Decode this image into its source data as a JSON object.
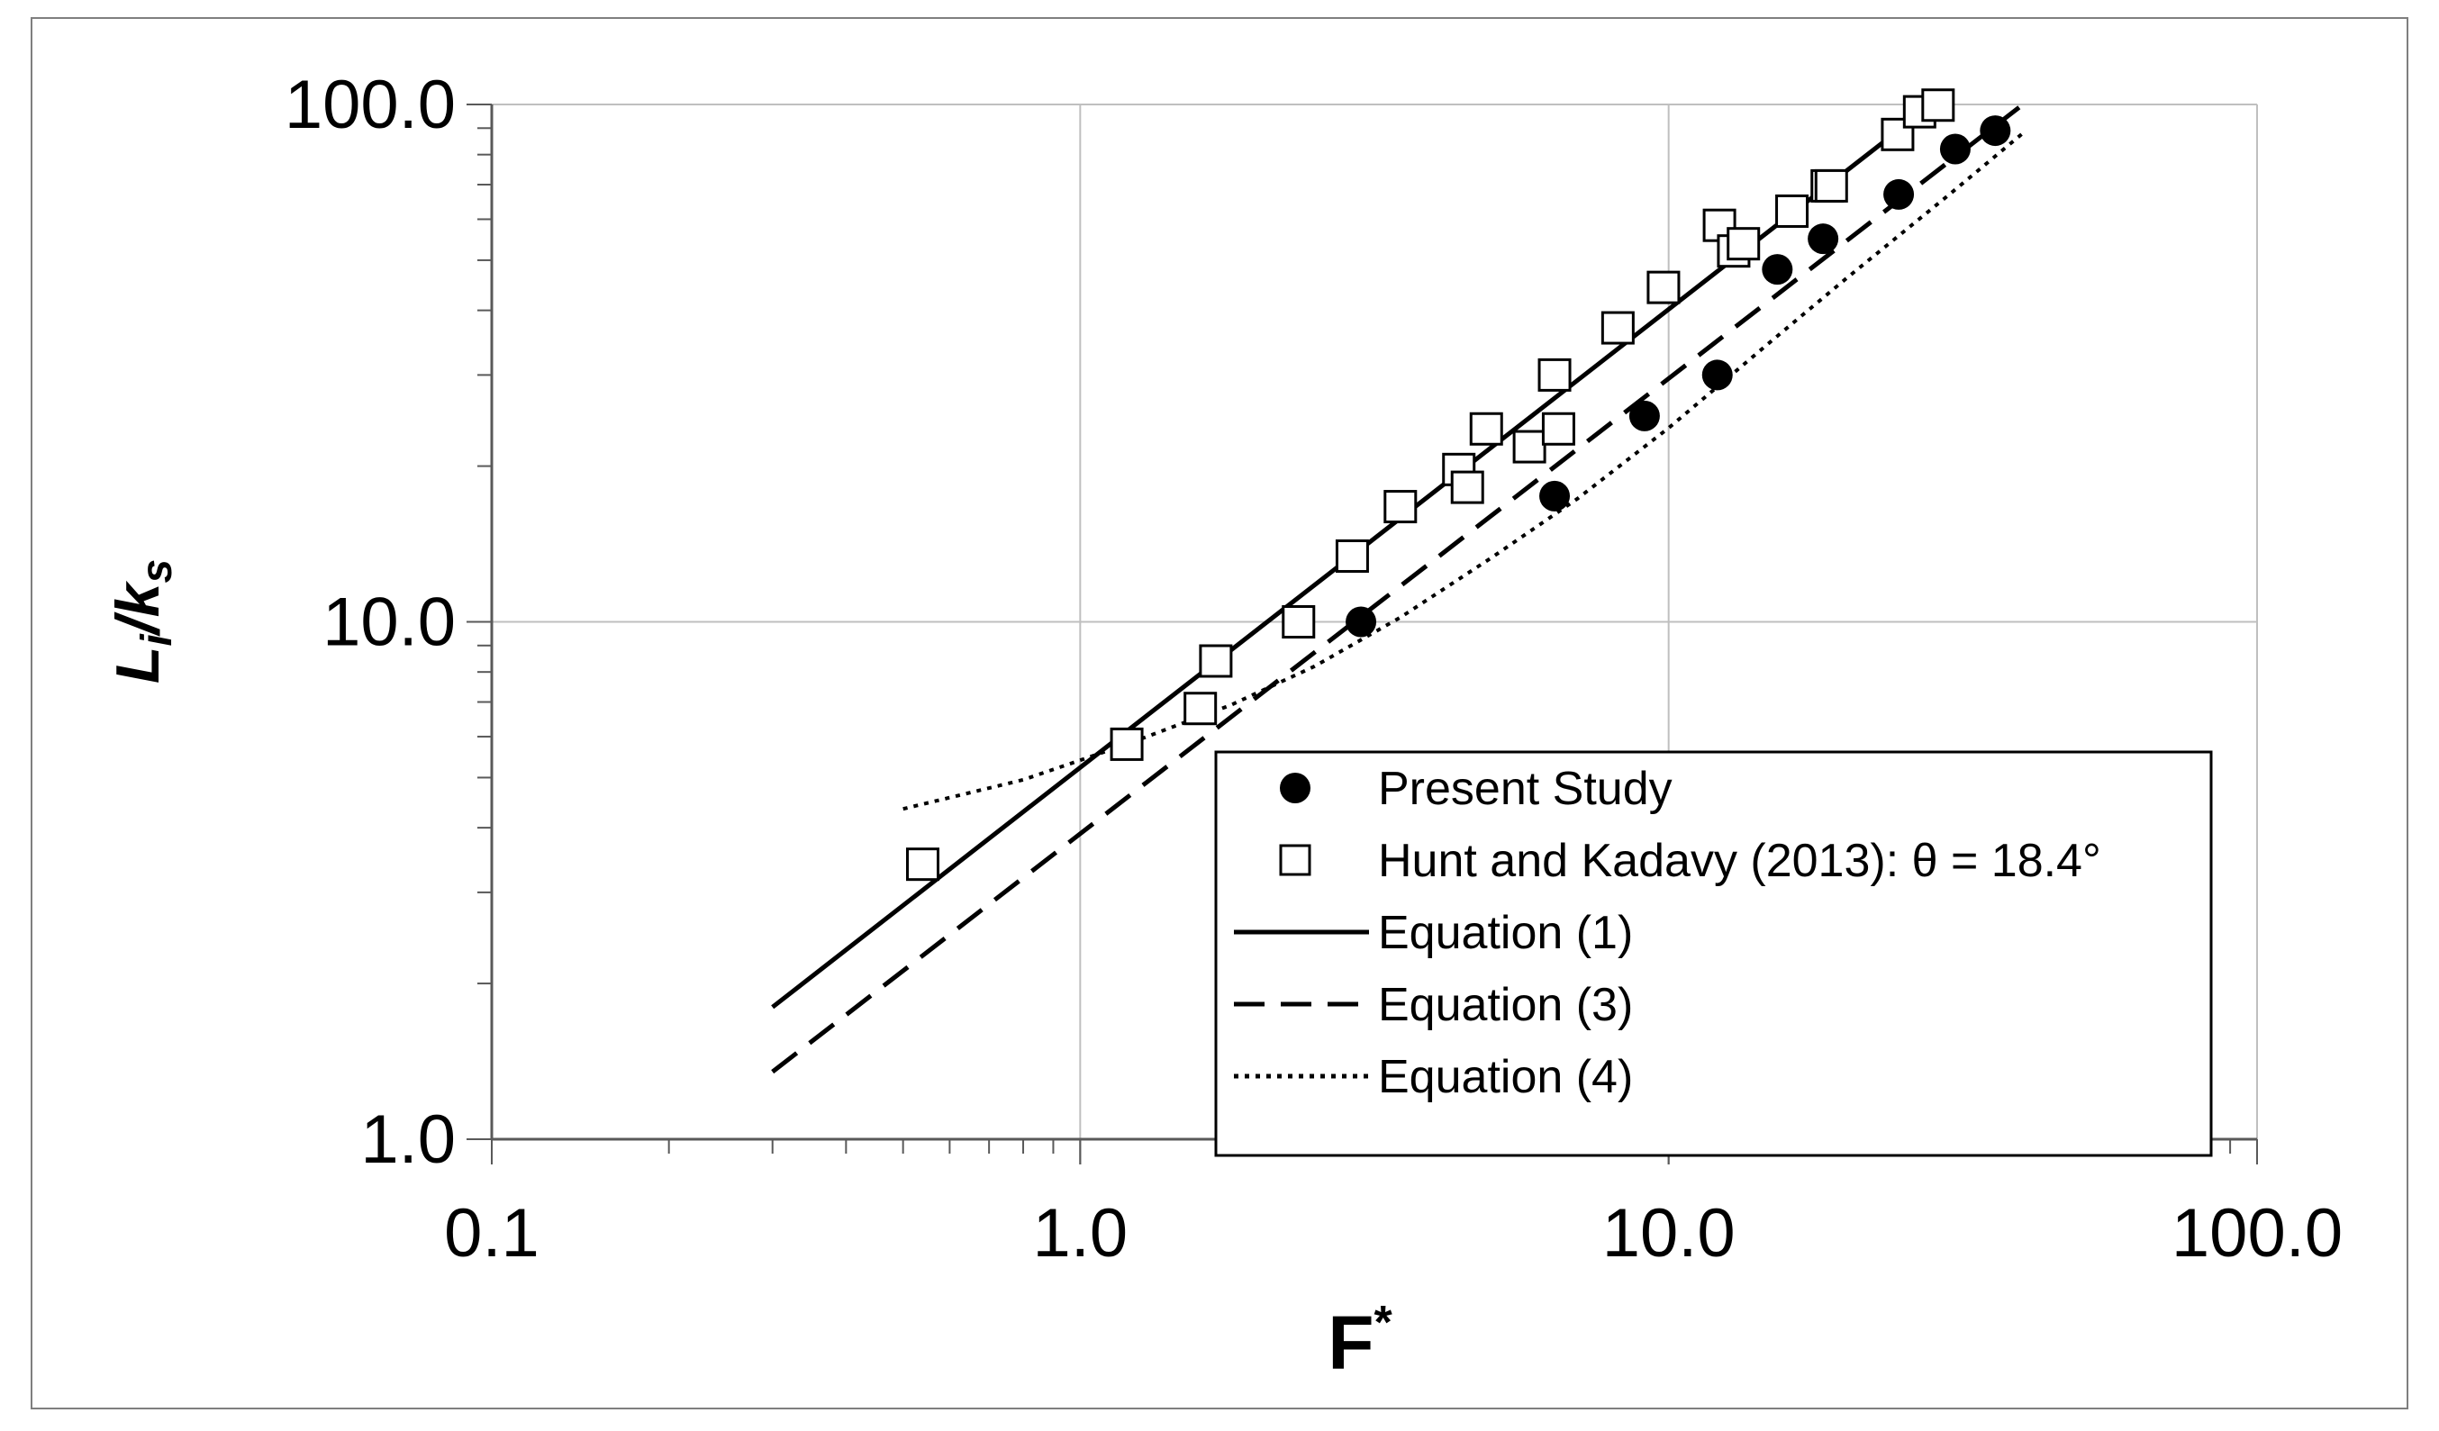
{
  "chart_data": {
    "type": "scatter",
    "xscale": "log",
    "yscale": "log",
    "xlim": [
      0.1,
      100
    ],
    "ylim": [
      1,
      100
    ],
    "grid": true,
    "legend_placement": "bottom-right",
    "xlabel": {
      "main": "F",
      "sup": "*"
    },
    "ylabel": {
      "main": "L",
      "sub1": "i",
      "sep": "/k",
      "sub2": "s"
    },
    "x_ticks": [
      {
        "value": 0.1,
        "label": "0.1"
      },
      {
        "value": 1,
        "label": "1.0"
      },
      {
        "value": 10,
        "label": "10.0"
      },
      {
        "value": 100,
        "label": "100.0"
      }
    ],
    "y_ticks": [
      {
        "value": 1,
        "label": "1.0"
      },
      {
        "value": 10,
        "label": "10.0"
      },
      {
        "value": 100,
        "label": "100.0"
      }
    ],
    "series": [
      {
        "name": "Present Study",
        "kind": "markers",
        "marker": "filled-circle",
        "color": "#000000",
        "points": [
          [
            3.0,
            10.0
          ],
          [
            6.4,
            17.5
          ],
          [
            9.1,
            25
          ],
          [
            12.1,
            30
          ],
          [
            15.3,
            48
          ],
          [
            18.3,
            55
          ],
          [
            24.6,
            67
          ],
          [
            30.7,
            82
          ],
          [
            35.9,
            89
          ]
        ]
      },
      {
        "name": "Hunt and Kadavy (2013): θ = 18.4°",
        "kind": "markers",
        "marker": "open-square",
        "color": "#000000",
        "points": [
          [
            0.54,
            3.4
          ],
          [
            1.2,
            5.8
          ],
          [
            1.6,
            6.8
          ],
          [
            1.7,
            8.4
          ],
          [
            2.35,
            10
          ],
          [
            2.9,
            13.4
          ],
          [
            3.5,
            16.7
          ],
          [
            4.4,
            19.7
          ],
          [
            4.55,
            18.2
          ],
          [
            4.9,
            23.6
          ],
          [
            5.8,
            21.8
          ],
          [
            6.5,
            23.6
          ],
          [
            6.4,
            30
          ],
          [
            8.2,
            37
          ],
          [
            9.8,
            44.3
          ],
          [
            12.2,
            58.4
          ],
          [
            12.9,
            52.1
          ],
          [
            13.4,
            53.8
          ],
          [
            16.2,
            62.2
          ],
          [
            18.6,
            69.6
          ],
          [
            18.9,
            69.6
          ],
          [
            24.5,
            87.5
          ],
          [
            26.7,
            96.8
          ],
          [
            28.7,
            99.7
          ]
        ]
      },
      {
        "name": "Equation (1)",
        "kind": "line",
        "dash": "solid",
        "color": "#000000",
        "points": [
          [
            0.3,
            1.8
          ],
          [
            28,
            100
          ]
        ]
      },
      {
        "name": "Equation (3)",
        "kind": "line",
        "dash": "dashed",
        "color": "#000000",
        "points": [
          [
            0.3,
            1.35
          ],
          [
            40,
            100
          ]
        ]
      },
      {
        "name": "Equation (4)",
        "kind": "line",
        "dash": "dotted",
        "color": "#000000",
        "points": [
          [
            0.5,
            4.35
          ],
          [
            0.8,
            4.95
          ],
          [
            1.2,
            5.8
          ],
          [
            1.8,
            6.9
          ],
          [
            2.5,
            8.2
          ],
          [
            3.5,
            10.2
          ],
          [
            5,
            13.3
          ],
          [
            7,
            17.3
          ],
          [
            10,
            23.7
          ],
          [
            15,
            35
          ],
          [
            20,
            46
          ],
          [
            30,
            67
          ],
          [
            40,
            88
          ]
        ]
      }
    ]
  }
}
